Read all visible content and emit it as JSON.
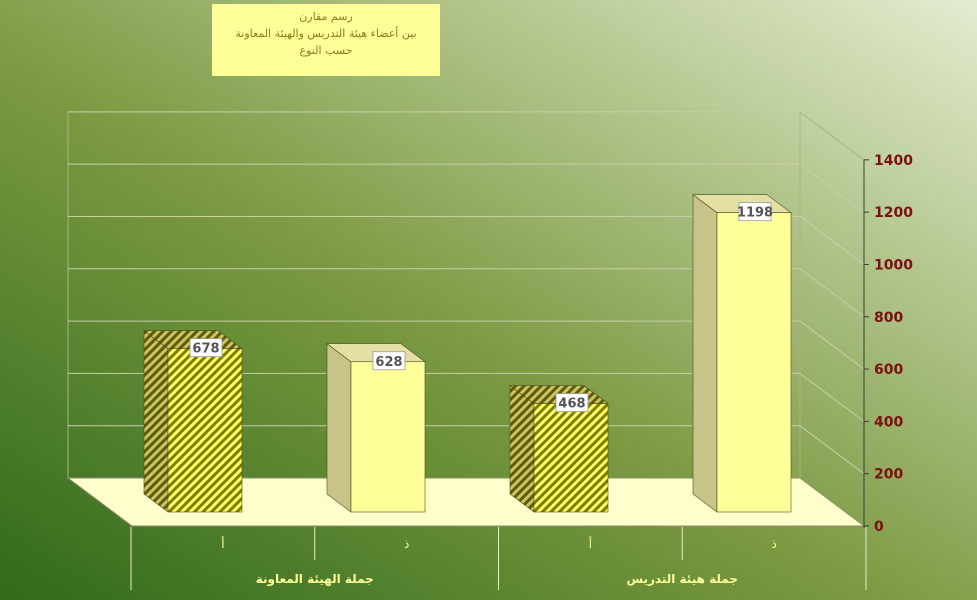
{
  "chart_data": {
    "type": "bar",
    "title_lines": [
      "رسم مقارن",
      "بين أعضاء هيئة التدريس والهيئة المعاونة",
      "حسب النوع"
    ],
    "y_ticks": [
      "0",
      "200",
      "400",
      "600",
      "800",
      "1000",
      "1200",
      "1400"
    ],
    "ylim": [
      0,
      1400
    ],
    "groups": [
      "جملة الهيئة المعاونة",
      "جملة هيئة التدريس"
    ],
    "categories": [
      "أ",
      "ذ",
      "أ",
      "ذ"
    ],
    "series": [
      {
        "values": [
          678,
          628,
          468,
          1198
        ]
      }
    ],
    "value_labels": [
      "678",
      "628",
      "468",
      "1198"
    ],
    "bar_styles": [
      "hatched",
      "plain",
      "hatched",
      "plain"
    ],
    "colors": {
      "background_dark": "#336b1c",
      "background_light": "#dfe8c4",
      "bar_front": "#ffff99",
      "bar_side": "#c8c388",
      "hatch": "#8c8800",
      "floor": "#ffffcc",
      "tick_label": "#7a1010",
      "category_label": "#ffff99"
    }
  }
}
